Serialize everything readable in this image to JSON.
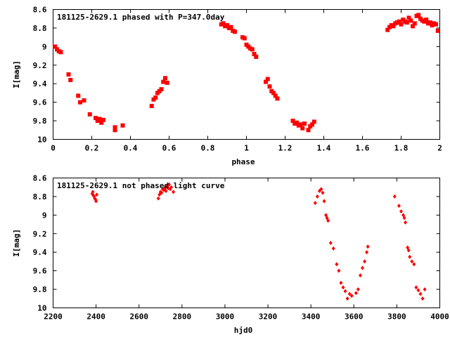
{
  "chart_data": [
    {
      "type": "scatter",
      "title": "181125-2629.1 phased with P=347.0day",
      "xlabel": "phase",
      "ylabel": "I[mag]",
      "xlim": [
        0,
        2
      ],
      "ylim": [
        10,
        8.6
      ],
      "y_inverted": true,
      "xticks": [
        "0",
        "0.2",
        "0.4",
        "0.6",
        "0.8",
        "1",
        "1.2",
        "1.4",
        "1.6",
        "1.8",
        "2"
      ],
      "yticks": [
        "8.6",
        "8.8",
        "9",
        "9.2",
        "9.4",
        "9.6",
        "9.8",
        "10"
      ],
      "grid": false,
      "marker_color": "#ff0000",
      "series": [
        {
          "x": [
            0.01,
            0.02,
            0.03,
            0.04,
            0.08,
            0.09,
            0.13,
            0.14,
            0.16,
            0.19,
            0.22,
            0.23,
            0.24,
            0.25,
            0.26,
            0.32,
            0.32,
            0.36,
            0.51,
            0.52,
            0.53,
            0.54,
            0.55,
            0.56,
            0.57,
            0.58,
            0.59,
            0.87,
            0.88,
            0.89,
            0.9,
            0.91,
            0.92,
            0.93,
            0.94,
            0.98,
            0.99,
            1.0,
            1.01,
            1.02,
            1.03,
            1.04,
            1.05,
            1.1,
            1.11,
            1.12,
            1.13,
            1.14,
            1.15,
            1.16,
            1.24,
            1.25,
            1.26,
            1.27,
            1.28,
            1.29,
            1.3,
            1.32,
            1.33,
            1.34,
            1.35,
            1.73,
            1.74,
            1.75,
            1.76,
            1.77,
            1.78,
            1.79,
            1.8,
            1.81,
            1.82,
            1.83,
            1.84,
            1.85,
            1.86,
            1.87,
            1.88,
            1.89,
            1.9,
            1.91,
            1.92,
            1.93,
            1.94,
            1.95,
            1.96,
            1.97,
            1.98,
            1.99
          ],
          "y": [
            9.0,
            9.03,
            9.05,
            9.06,
            9.3,
            9.36,
            9.53,
            9.6,
            9.58,
            9.73,
            9.77,
            9.8,
            9.78,
            9.82,
            9.79,
            9.87,
            9.9,
            9.85,
            9.64,
            9.57,
            9.55,
            9.5,
            9.48,
            9.46,
            9.38,
            9.34,
            9.39,
            8.76,
            8.75,
            8.78,
            8.77,
            8.8,
            8.79,
            8.83,
            8.84,
            8.9,
            8.91,
            8.98,
            9.0,
            9.02,
            9.03,
            9.08,
            9.11,
            9.38,
            9.35,
            9.43,
            9.48,
            9.5,
            9.53,
            9.56,
            9.8,
            9.83,
            9.82,
            9.85,
            9.84,
            9.88,
            9.83,
            9.9,
            9.86,
            9.84,
            9.81,
            8.82,
            8.79,
            8.77,
            8.78,
            8.75,
            8.74,
            8.73,
            8.76,
            8.71,
            8.73,
            8.74,
            8.69,
            8.72,
            8.78,
            8.75,
            8.67,
            8.66,
            8.7,
            8.72,
            8.73,
            8.71,
            8.75,
            8.74,
            8.77,
            8.75,
            8.76,
            8.83
          ]
        }
      ]
    },
    {
      "type": "scatter",
      "title": "181125-2629.1 not phased light curve",
      "xlabel": "hjd0",
      "ylabel": "I[mag]",
      "xlim": [
        2200,
        4000
      ],
      "ylim": [
        10,
        8.6
      ],
      "y_inverted": true,
      "xticks": [
        "2200",
        "2400",
        "2600",
        "2800",
        "3000",
        "3200",
        "3400",
        "3600",
        "3800",
        "4000"
      ],
      "yticks": [
        "8.6",
        "8.8",
        "9",
        "9.2",
        "9.4",
        "9.6",
        "9.8",
        "10"
      ],
      "grid": false,
      "marker_color": "#ff0000",
      "series": [
        {
          "x": [
            2382,
            2385,
            2388,
            2391,
            2394,
            2397,
            2400,
            2403,
            2690,
            2695,
            2700,
            2705,
            2710,
            2715,
            2720,
            2725,
            2730,
            2735,
            2740,
            2745,
            2750,
            2760,
            3420,
            3430,
            3440,
            3448,
            3455,
            3462,
            3470,
            3475,
            3480,
            3492,
            3505,
            3520,
            3530,
            3540,
            3550,
            3560,
            3570,
            3580,
            3590,
            3610,
            3620,
            3630,
            3640,
            3650,
            3660,
            3665,
            3790,
            3810,
            3820,
            3830,
            3835,
            3840,
            3850,
            3855,
            3860,
            3870,
            3880,
            3890,
            3900,
            3910,
            3920,
            3930
          ],
          "y": [
            8.77,
            8.75,
            8.79,
            8.8,
            8.82,
            8.83,
            8.85,
            8.78,
            8.82,
            8.78,
            8.75,
            8.76,
            8.72,
            8.73,
            8.71,
            8.74,
            8.69,
            8.71,
            8.67,
            8.72,
            8.7,
            8.75,
            8.87,
            8.8,
            8.74,
            8.72,
            8.76,
            8.85,
            9.0,
            9.03,
            9.06,
            9.3,
            9.36,
            9.53,
            9.6,
            9.73,
            9.78,
            9.82,
            9.9,
            9.85,
            9.87,
            9.84,
            9.8,
            9.65,
            9.57,
            9.5,
            9.4,
            9.34,
            8.8,
            8.9,
            8.96,
            9.0,
            9.03,
            9.08,
            9.35,
            9.38,
            9.45,
            9.5,
            9.53,
            9.78,
            9.81,
            9.85,
            9.9,
            9.8
          ]
        }
      ]
    }
  ]
}
